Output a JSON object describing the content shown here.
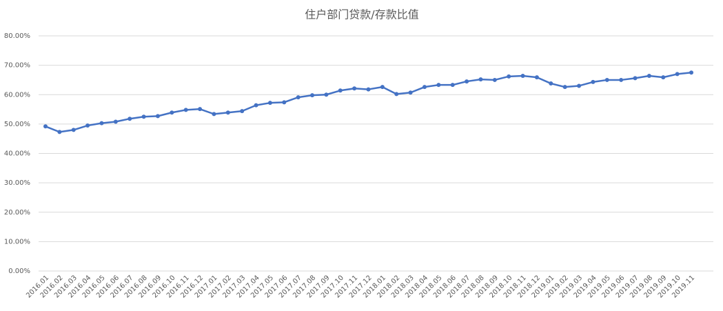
{
  "chart_data": {
    "type": "line",
    "title": "住户部门贷款/存款比值",
    "categories": [
      "2016.01",
      "2016.02",
      "2016.03",
      "2016.04",
      "2016.05",
      "2016.06",
      "2016.07",
      "2016.08",
      "2016.09",
      "2016.10",
      "2016.11",
      "2016.12",
      "2017.01",
      "2017.02",
      "2017.03",
      "2017.04",
      "2017.05",
      "2017.06",
      "2017.07",
      "2017.08",
      "2017.09",
      "2017.10",
      "2017.11",
      "2017.12",
      "2018.01",
      "2018.02",
      "2018.03",
      "2018.04",
      "2018.05",
      "2018.06",
      "2018.07",
      "2018.08",
      "2018.09",
      "2018.10",
      "2018.11",
      "2018.12",
      "2019.01",
      "2019.02",
      "2019.03",
      "2019.04",
      "2019.05",
      "2019.06",
      "2019.07",
      "2019.08",
      "2019.09",
      "2019.10",
      "2019.11"
    ],
    "values": [
      49.2,
      47.3,
      48.0,
      49.5,
      50.3,
      50.8,
      51.8,
      52.5,
      52.7,
      53.9,
      54.8,
      55.1,
      53.4,
      53.9,
      54.4,
      56.4,
      57.2,
      57.4,
      59.1,
      59.8,
      60.0,
      61.4,
      62.1,
      61.8,
      62.6,
      60.2,
      60.7,
      62.6,
      63.3,
      63.3,
      64.5,
      65.2,
      65.0,
      66.2,
      66.4,
      65.9,
      63.8,
      62.6,
      63.0,
      64.3,
      65.0,
      65.0,
      65.6,
      66.4,
      65.9,
      67.0,
      67.5
    ],
    "color": "#4472c4",
    "ylim": [
      0,
      80
    ],
    "yticks": [
      {
        "value": 0,
        "label": "0.00%"
      },
      {
        "value": 10,
        "label": "10.00%"
      },
      {
        "value": 20,
        "label": "20.00%"
      },
      {
        "value": 30,
        "label": "30.00%"
      },
      {
        "value": 40,
        "label": "40.00%"
      },
      {
        "value": 50,
        "label": "50.00%"
      },
      {
        "value": 60,
        "label": "60.00%"
      },
      {
        "value": 70,
        "label": "70.00%"
      },
      {
        "value": 80,
        "label": "80.00%"
      }
    ],
    "grid": true
  }
}
